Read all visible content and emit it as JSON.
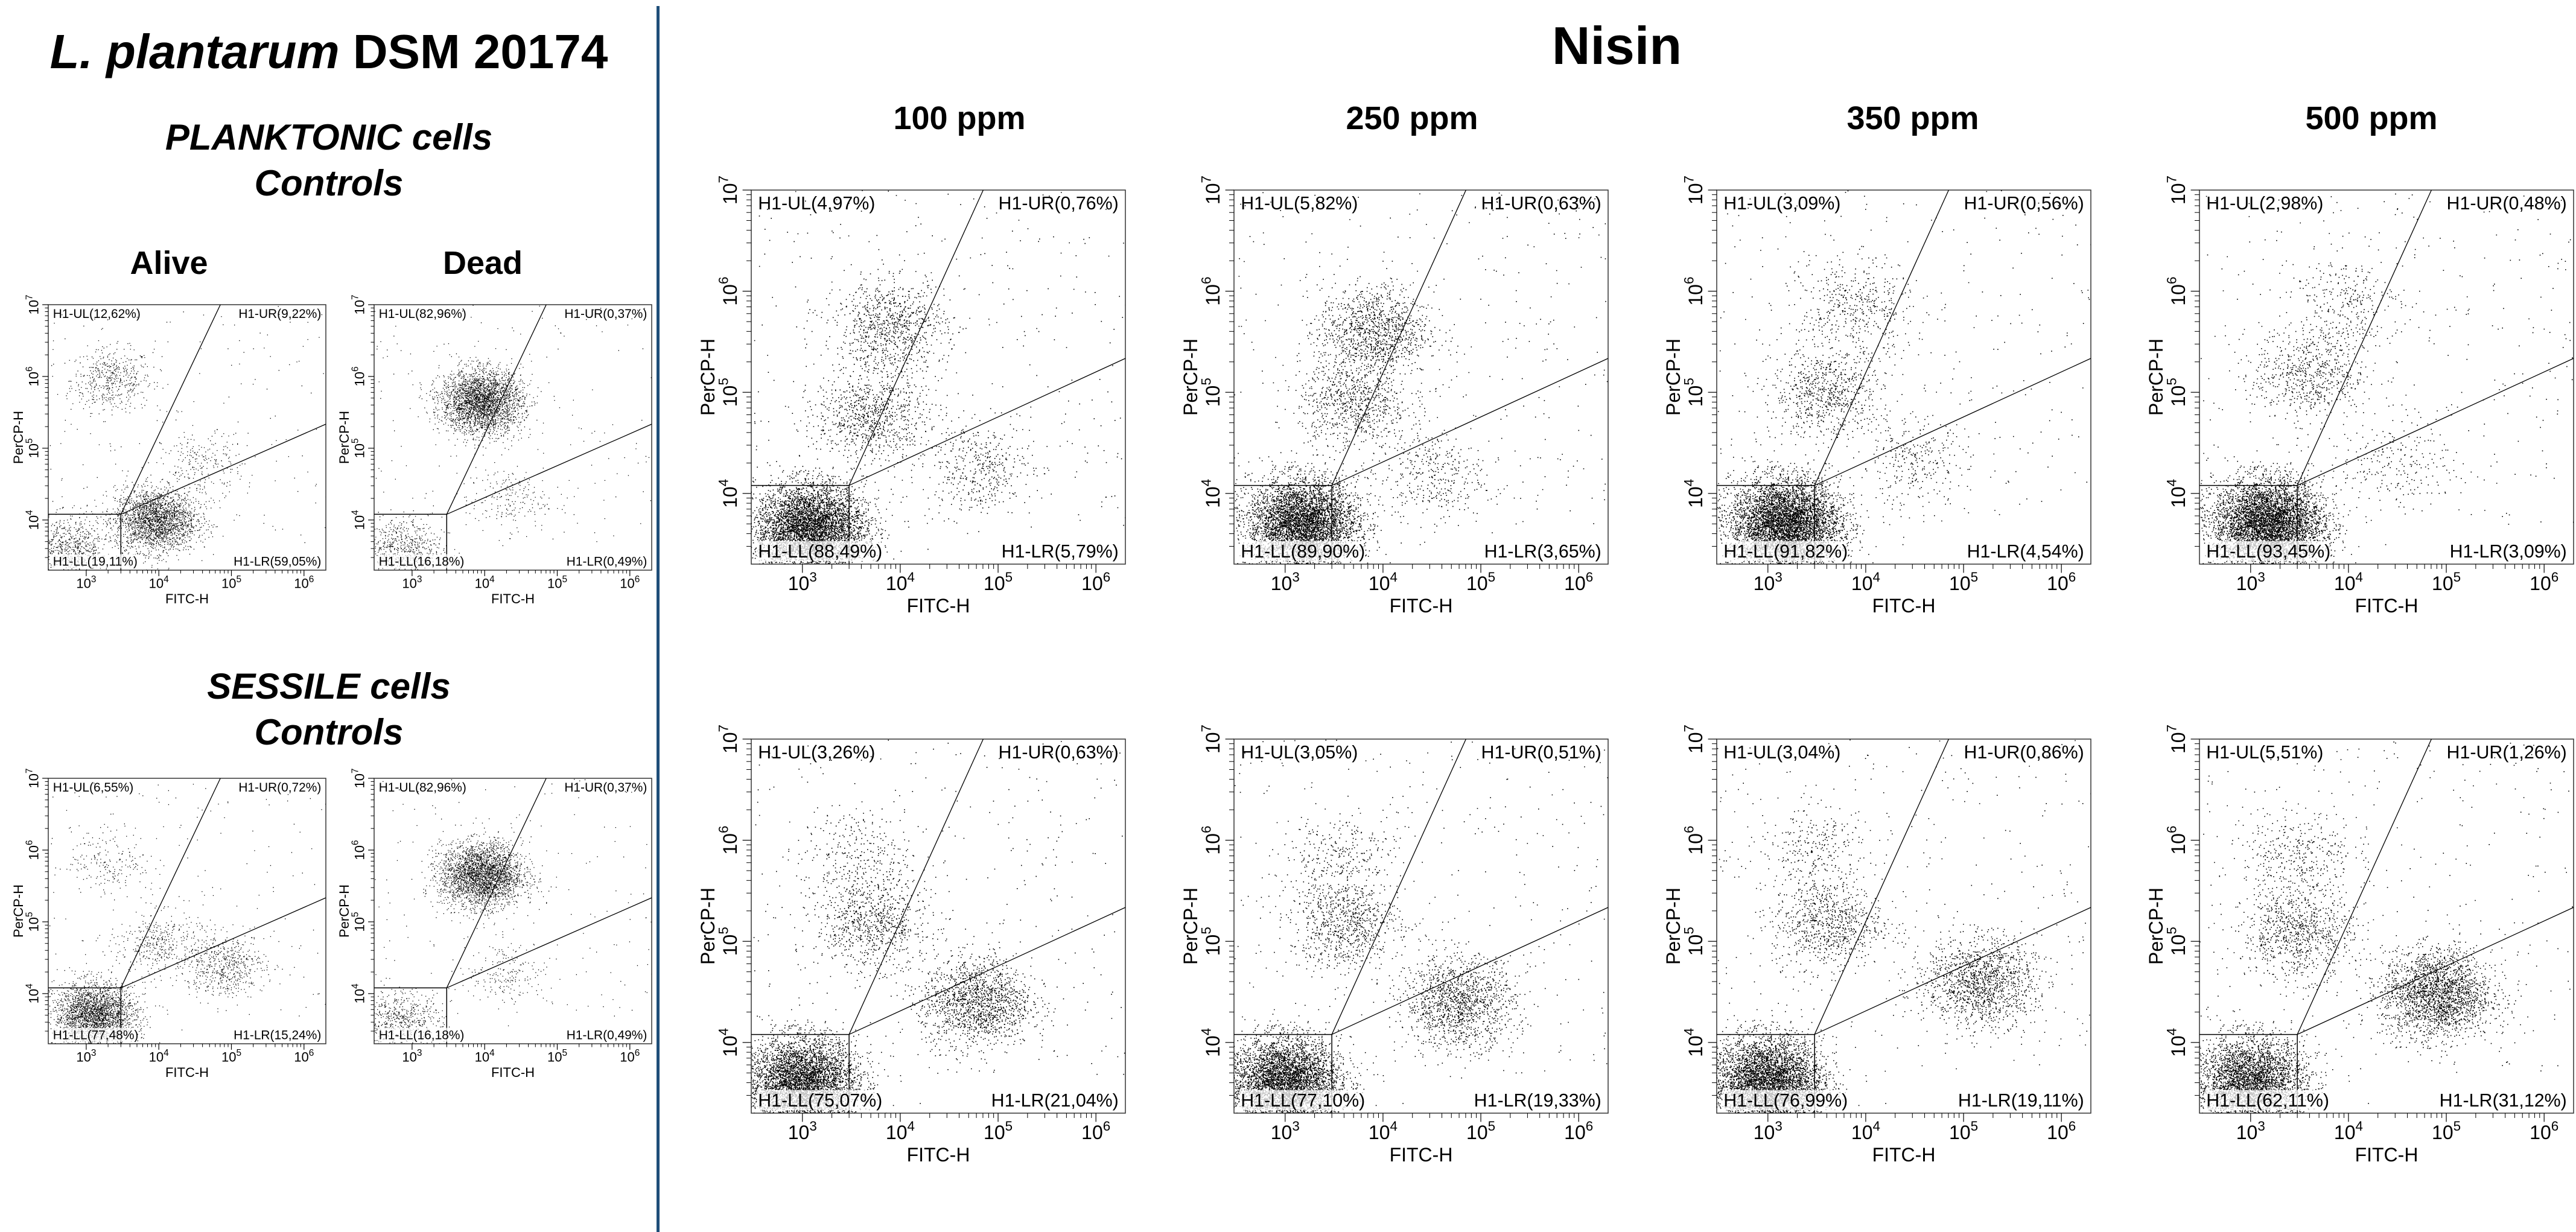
{
  "header": {
    "species": "L. plantarum",
    "strain": " DSM 20174",
    "treatment": "Nisin"
  },
  "left": {
    "planktonic_line1": "PLANKTONIC cells",
    "planktonic_line2": "Controls",
    "sessile_line1": "SESSILE cells",
    "sessile_line2": "Controls",
    "col_alive": "Alive",
    "col_dead": "Dead"
  },
  "concentrations": [
    "100 ppm",
    "250 ppm",
    "350 ppm",
    "500 ppm"
  ],
  "chart_data": [
    {
      "id": "planktonic-alive",
      "type": "scatter",
      "xlabel": "FITC-H",
      "ylabel": "PerCP-H",
      "xscale": "log",
      "yscale": "log",
      "xlim": [
        300,
        2000000
      ],
      "ylim": [
        2000,
        10000000
      ],
      "xticks": [
        "10^3",
        "10^4",
        "10^5",
        "10^6"
      ],
      "yticks": [
        "10^4",
        "10^5",
        "10^6",
        "10^7"
      ],
      "quadrants": {
        "UL": "H1-UL(12,62%)",
        "UR": "H1-UR(9,22%)",
        "LL": "H1-LL(19,11%)",
        "LR": "H1-LR(59,05%)"
      },
      "populations": [
        {
          "x": 2200,
          "y": 900000,
          "share": 0.13
        },
        {
          "x": 9000,
          "y": 10000,
          "share": 0.62
        },
        {
          "x": 600,
          "y": 4000,
          "share": 0.19
        },
        {
          "x": 40000,
          "y": 60000,
          "share": 0.06
        }
      ]
    },
    {
      "id": "planktonic-dead",
      "type": "scatter",
      "xlabel": "FITC-H",
      "ylabel": "PerCP-H",
      "xscale": "log",
      "yscale": "log",
      "xlim": [
        300,
        2000000
      ],
      "ylim": [
        2000,
        10000000
      ],
      "xticks": [
        "10^3",
        "10^4",
        "10^5",
        "10^6"
      ],
      "yticks": [
        "10^4",
        "10^5",
        "10^6",
        "10^7"
      ],
      "quadrants": {
        "UL": "H1-UL(82,96%)",
        "UR": "H1-UR(0,37%)",
        "LL": "H1-LL(16,18%)",
        "LR": "H1-LR(0,49%)"
      },
      "populations": [
        {
          "x": 9000,
          "y": 450000,
          "share": 0.78
        },
        {
          "x": 700,
          "y": 4000,
          "share": 0.17
        },
        {
          "x": 20000,
          "y": 20000,
          "share": 0.05
        }
      ]
    },
    {
      "id": "sessile-alive",
      "type": "scatter",
      "xlabel": "FITC-H",
      "ylabel": "PerCP-H",
      "xscale": "log",
      "yscale": "log",
      "xlim": [
        300,
        2000000
      ],
      "ylim": [
        2000,
        10000000
      ],
      "xticks": [
        "10^3",
        "10^4",
        "10^5",
        "10^6"
      ],
      "yticks": [
        "10^4",
        "10^5",
        "10^6",
        "10^7"
      ],
      "quadrants": {
        "UL": "H1-UL(6,55%)",
        "UR": "H1-UR(0,72%)",
        "LL": "H1-LL(77,48%)",
        "LR": "H1-LR(15,24%)"
      },
      "populations": [
        {
          "x": 2200,
          "y": 700000,
          "share": 0.05
        },
        {
          "x": 1300,
          "y": 5000,
          "share": 0.7
        },
        {
          "x": 80000,
          "y": 25000,
          "share": 0.15
        },
        {
          "x": 10000,
          "y": 50000,
          "share": 0.1
        }
      ]
    },
    {
      "id": "sessile-dead",
      "type": "scatter",
      "xlabel": "FITC-H",
      "ylabel": "PerCP-H",
      "xscale": "log",
      "yscale": "log",
      "xlim": [
        300,
        2000000
      ],
      "ylim": [
        2000,
        10000000
      ],
      "xticks": [
        "10^3",
        "10^4",
        "10^5",
        "10^6"
      ],
      "yticks": [
        "10^4",
        "10^5",
        "10^6",
        "10^7"
      ],
      "quadrants": {
        "UL": "H1-UL(82,96%)",
        "UR": "H1-UR(0,37%)",
        "LL": "H1-LL(16,18%)",
        "LR": "H1-LR(0,49%)"
      },
      "populations": [
        {
          "x": 9000,
          "y": 450000,
          "share": 0.78
        },
        {
          "x": 700,
          "y": 4000,
          "share": 0.17
        },
        {
          "x": 20000,
          "y": 20000,
          "share": 0.05
        }
      ]
    },
    {
      "id": "planktonic-100",
      "type": "scatter",
      "xlabel": "FITC-H",
      "ylabel": "PerCP-H",
      "xscale": "log",
      "yscale": "log",
      "xlim": [
        300,
        2000000
      ],
      "ylim": [
        2000,
        10000000
      ],
      "xticks": [
        "10^3",
        "10^4",
        "10^5",
        "10^6"
      ],
      "yticks": [
        "10^4",
        "10^5",
        "10^6",
        "10^7"
      ],
      "quadrants": {
        "UL": "H1-UL(4,97%)",
        "UR": "H1-UR(0,76%)",
        "LL": "H1-LL(88,49%)",
        "LR": "H1-LR(5,79%)"
      },
      "populations": [
        {
          "x": 8000,
          "y": 450000,
          "share": 0.12
        },
        {
          "x": 1200,
          "y": 4500,
          "share": 0.7
        },
        {
          "x": 60000,
          "y": 18000,
          "share": 0.06
        },
        {
          "x": 5000,
          "y": 60000,
          "share": 0.12
        }
      ]
    },
    {
      "id": "planktonic-250",
      "type": "scatter",
      "xlabel": "FITC-H",
      "ylabel": "PerCP-H",
      "xscale": "log",
      "yscale": "log",
      "xlim": [
        300,
        2000000
      ],
      "ylim": [
        2000,
        10000000
      ],
      "xticks": [
        "10^3",
        "10^4",
        "10^5",
        "10^6"
      ],
      "yticks": [
        "10^4",
        "10^5",
        "10^6",
        "10^7"
      ],
      "quadrants": {
        "UL": "H1-UL(5,82%)",
        "UR": "H1-UR(0,63%)",
        "LL": "H1-LL(89,90%)",
        "LR": "H1-LR(3,65%)"
      },
      "populations": [
        {
          "x": 8000,
          "y": 400000,
          "share": 0.16
        },
        {
          "x": 1500,
          "y": 5000,
          "share": 0.68
        },
        {
          "x": 30000,
          "y": 15000,
          "share": 0.05
        },
        {
          "x": 5000,
          "y": 80000,
          "share": 0.11
        }
      ]
    },
    {
      "id": "planktonic-350",
      "type": "scatter",
      "xlabel": "FITC-H",
      "ylabel": "PerCP-H",
      "xscale": "log",
      "yscale": "log",
      "xlim": [
        300,
        2000000
      ],
      "ylim": [
        2000,
        10000000
      ],
      "xticks": [
        "10^3",
        "10^4",
        "10^5",
        "10^6"
      ],
      "yticks": [
        "10^4",
        "10^5",
        "10^6",
        "10^7"
      ],
      "quadrants": {
        "UL": "H1-UL(3,09%)",
        "UR": "H1-UR(0,56%)",
        "LL": "H1-LL(91,82%)",
        "LR": "H1-LR(4,54%)"
      },
      "populations": [
        {
          "x": 8000,
          "y": 700000,
          "share": 0.06
        },
        {
          "x": 1500,
          "y": 5000,
          "share": 0.8
        },
        {
          "x": 30000,
          "y": 20000,
          "share": 0.04
        },
        {
          "x": 4000,
          "y": 100000,
          "share": 0.1
        }
      ]
    },
    {
      "id": "planktonic-500",
      "type": "scatter",
      "xlabel": "FITC-H",
      "ylabel": "PerCP-H",
      "xscale": "log",
      "yscale": "log",
      "xlim": [
        300,
        2000000
      ],
      "ylim": [
        2000,
        10000000
      ],
      "xticks": [
        "10^3",
        "10^4",
        "10^5",
        "10^6"
      ],
      "yticks": [
        "10^4",
        "10^5",
        "10^6",
        "10^7"
      ],
      "quadrants": {
        "UL": "H1-UL(2,98%)",
        "UR": "H1-UR(0,48%)",
        "LL": "H1-LL(93,45%)",
        "LR": "H1-LR(3,09%)"
      },
      "populations": [
        {
          "x": 9000,
          "y": 800000,
          "share": 0.04
        },
        {
          "x": 1500,
          "y": 5000,
          "share": 0.84
        },
        {
          "x": 30000,
          "y": 20000,
          "share": 0.03
        },
        {
          "x": 4000,
          "y": 150000,
          "share": 0.09
        }
      ]
    },
    {
      "id": "sessile-100",
      "type": "scatter",
      "xlabel": "FITC-H",
      "ylabel": "PerCP-H",
      "xscale": "log",
      "yscale": "log",
      "xlim": [
        300,
        2000000
      ],
      "ylim": [
        2000,
        10000000
      ],
      "xticks": [
        "10^3",
        "10^4",
        "10^5",
        "10^6"
      ],
      "yticks": [
        "10^4",
        "10^5",
        "10^6",
        "10^7"
      ],
      "quadrants": {
        "UL": "H1-UL(3,26%)",
        "UR": "H1-UR(0,63%)",
        "LL": "H1-LL(75,07%)",
        "LR": "H1-LR(21,04%)"
      },
      "populations": [
        {
          "x": 3500,
          "y": 700000,
          "share": 0.04
        },
        {
          "x": 1000,
          "y": 4000,
          "share": 0.64
        },
        {
          "x": 60000,
          "y": 25000,
          "share": 0.21
        },
        {
          "x": 5000,
          "y": 150000,
          "share": 0.11
        }
      ]
    },
    {
      "id": "sessile-250",
      "type": "scatter",
      "xlabel": "FITC-H",
      "ylabel": "PerCP-H",
      "xscale": "log",
      "yscale": "log",
      "xlim": [
        300,
        2000000
      ],
      "ylim": [
        2000,
        10000000
      ],
      "xticks": [
        "10^3",
        "10^4",
        "10^5",
        "10^6"
      ],
      "yticks": [
        "10^4",
        "10^5",
        "10^6",
        "10^7"
      ],
      "quadrants": {
        "UL": "H1-UL(3,05%)",
        "UR": "H1-UR(0,51%)",
        "LL": "H1-LL(77,10%)",
        "LR": "H1-LR(19,33%)"
      },
      "populations": [
        {
          "x": 3500,
          "y": 700000,
          "share": 0.04
        },
        {
          "x": 1000,
          "y": 4000,
          "share": 0.66
        },
        {
          "x": 60000,
          "y": 25000,
          "share": 0.19
        },
        {
          "x": 4000,
          "y": 150000,
          "share": 0.11
        }
      ]
    },
    {
      "id": "sessile-350",
      "type": "scatter",
      "xlabel": "FITC-H",
      "ylabel": "PerCP-H",
      "xscale": "log",
      "yscale": "log",
      "xlim": [
        300,
        2000000
      ],
      "ylim": [
        2000,
        10000000
      ],
      "xticks": [
        "10^3",
        "10^4",
        "10^5",
        "10^6"
      ],
      "yticks": [
        "10^4",
        "10^5",
        "10^6",
        "10^7"
      ],
      "quadrants": {
        "UL": "H1-UL(3,04%)",
        "UR": "H1-UR(0,86%)",
        "LL": "H1-LL(76,99%)",
        "LR": "H1-LR(19,11%)"
      },
      "populations": [
        {
          "x": 3000,
          "y": 800000,
          "share": 0.04
        },
        {
          "x": 1000,
          "y": 4000,
          "share": 0.66
        },
        {
          "x": 150000,
          "y": 40000,
          "share": 0.19
        },
        {
          "x": 4000,
          "y": 150000,
          "share": 0.11
        }
      ]
    },
    {
      "id": "sessile-500",
      "type": "scatter",
      "xlabel": "FITC-H",
      "ylabel": "PerCP-H",
      "xscale": "log",
      "yscale": "log",
      "xlim": [
        300,
        2000000
      ],
      "ylim": [
        2000,
        10000000
      ],
      "xticks": [
        "10^3",
        "10^4",
        "10^5",
        "10^6"
      ],
      "yticks": [
        "10^4",
        "10^5",
        "10^6",
        "10^7"
      ],
      "quadrants": {
        "UL": "H1-UL(5,51%)",
        "UR": "H1-UR(1,26%)",
        "LL": "H1-LL(62,11%)",
        "LR": "H1-LR(31,12%)"
      },
      "populations": [
        {
          "x": 3000,
          "y": 700000,
          "share": 0.05
        },
        {
          "x": 1000,
          "y": 4000,
          "share": 0.52
        },
        {
          "x": 80000,
          "y": 30000,
          "share": 0.31
        },
        {
          "x": 3000,
          "y": 120000,
          "share": 0.12
        }
      ]
    }
  ]
}
